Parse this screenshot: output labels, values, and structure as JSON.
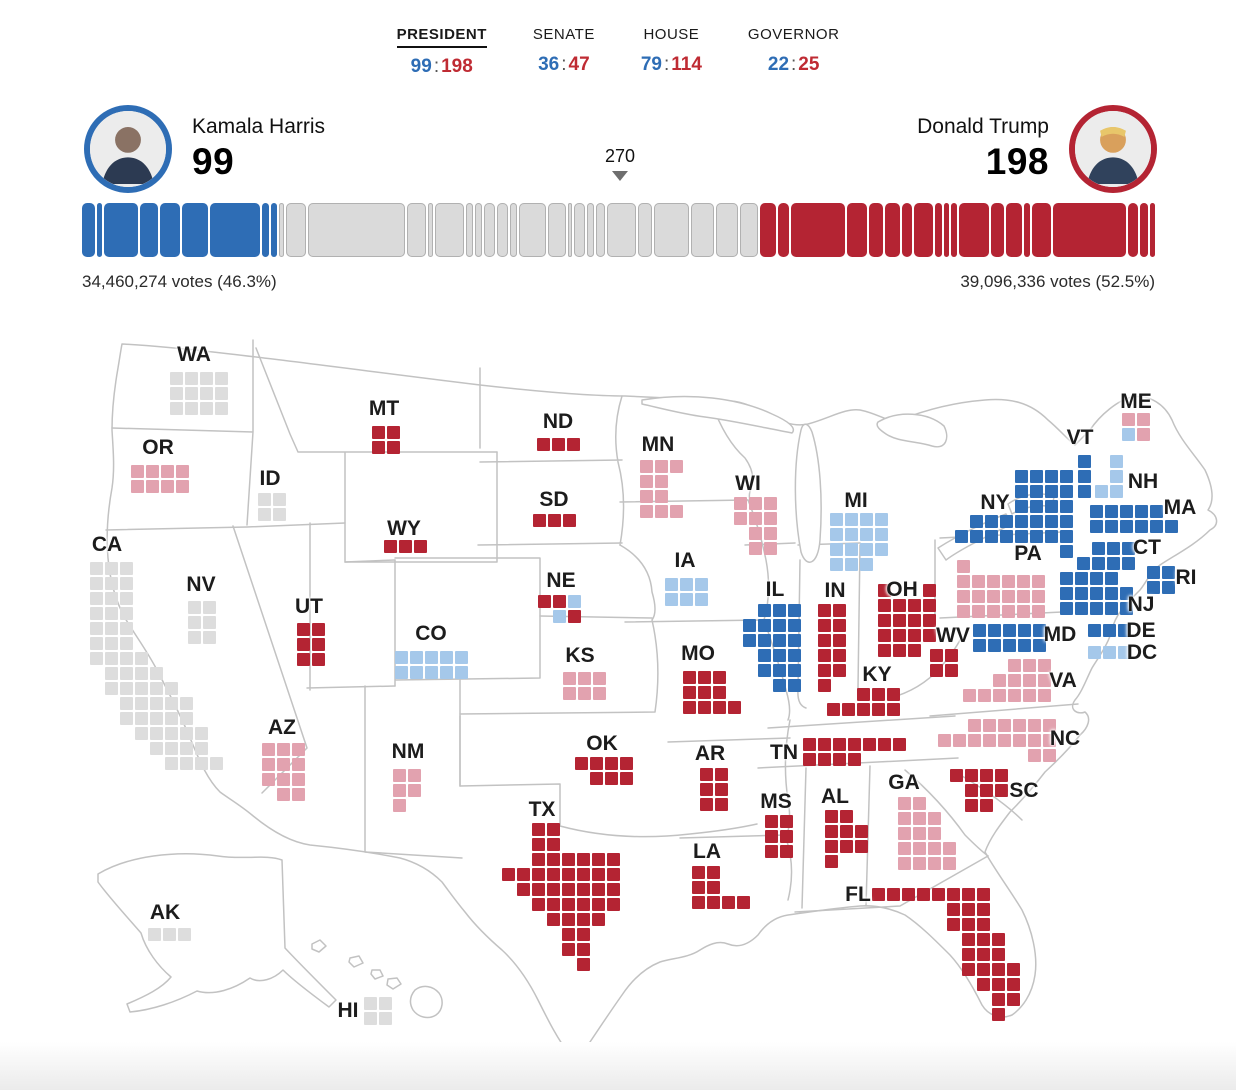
{
  "nav": {
    "tabs": [
      {
        "label": "PRESIDENT",
        "dem": "99",
        "rep": "198",
        "active": true
      },
      {
        "label": "SENATE",
        "dem": "36",
        "rep": "47",
        "active": false
      },
      {
        "label": "HOUSE",
        "dem": "79",
        "rep": "114",
        "active": false
      },
      {
        "label": "GOVERNOR",
        "dem": "22",
        "rep": "25",
        "active": false
      }
    ]
  },
  "candidates": {
    "dem": {
      "name": "Kamala Harris",
      "electoral_votes": "99",
      "popular_votes": "34,460,274 votes (46.3%)"
    },
    "rep": {
      "name": "Donald Trump",
      "electoral_votes": "198",
      "popular_votes": "39,096,336 votes (52.5%)"
    }
  },
  "threshold": {
    "label": "270"
  },
  "totals": {
    "dem_ev": 99,
    "rep_ev": 198,
    "uncalled_ev": 241,
    "total_ev": 538,
    "win_threshold": 270
  },
  "colors": {
    "dem": "#2e6db5",
    "dem_lean": "#a5c8ea",
    "rep": "#b42433",
    "rep_lean": "#e2a2af",
    "uncalled": "#dddddd",
    "bar_uncalled": "#dadada",
    "outline": "#c2c2c2"
  },
  "bar": {
    "dem_segments": [
      {
        "abbr": "CT",
        "ev": 7
      },
      {
        "abbr": "DE",
        "ev": 3
      },
      {
        "abbr": "IL",
        "ev": 19
      },
      {
        "abbr": "MD",
        "ev": 10
      },
      {
        "abbr": "MA",
        "ev": 11
      },
      {
        "abbr": "NJ",
        "ev": 14
      },
      {
        "abbr": "NY",
        "ev": 28
      },
      {
        "abbr": "RI",
        "ev": 4
      },
      {
        "abbr": "VT",
        "ev": 3
      }
    ],
    "uncalled_segments": [
      {
        "abbr": "AK",
        "ev": 3
      },
      {
        "abbr": "AZ",
        "ev": 11
      },
      {
        "abbr": "CA",
        "ev": 54
      },
      {
        "abbr": "CO",
        "ev": 10
      },
      {
        "abbr": "DC",
        "ev": 3
      },
      {
        "abbr": "GA",
        "ev": 16
      },
      {
        "abbr": "HI",
        "ev": 4
      },
      {
        "abbr": "ID",
        "ev": 4
      },
      {
        "abbr": "IA",
        "ev": 6
      },
      {
        "abbr": "KS",
        "ev": 6
      },
      {
        "abbr": "ME",
        "ev": 4
      },
      {
        "abbr": "MI",
        "ev": 15
      },
      {
        "abbr": "MN",
        "ev": 10
      },
      {
        "abbr": "NE",
        "ev": 2
      },
      {
        "abbr": "NV",
        "ev": 6
      },
      {
        "abbr": "NH",
        "ev": 4
      },
      {
        "abbr": "NM",
        "ev": 5
      },
      {
        "abbr": "NC",
        "ev": 16
      },
      {
        "abbr": "OR",
        "ev": 8
      },
      {
        "abbr": "PA",
        "ev": 19
      },
      {
        "abbr": "VA",
        "ev": 13
      },
      {
        "abbr": "WA",
        "ev": 12
      },
      {
        "abbr": "WI",
        "ev": 10
      }
    ],
    "rep_segments": [
      {
        "abbr": "AL",
        "ev": 9
      },
      {
        "abbr": "AR",
        "ev": 6
      },
      {
        "abbr": "FL",
        "ev": 30
      },
      {
        "abbr": "IN",
        "ev": 11
      },
      {
        "abbr": "KY",
        "ev": 8
      },
      {
        "abbr": "LA",
        "ev": 8
      },
      {
        "abbr": "MS",
        "ev": 6
      },
      {
        "abbr": "MO",
        "ev": 10
      },
      {
        "abbr": "MT",
        "ev": 4
      },
      {
        "abbr": "NE",
        "ev": 3
      },
      {
        "abbr": "ND",
        "ev": 3
      },
      {
        "abbr": "OH",
        "ev": 17
      },
      {
        "abbr": "OK",
        "ev": 7
      },
      {
        "abbr": "SC",
        "ev": 9
      },
      {
        "abbr": "SD",
        "ev": 3
      },
      {
        "abbr": "TN",
        "ev": 11
      },
      {
        "abbr": "TX",
        "ev": 40
      },
      {
        "abbr": "UT",
        "ev": 6
      },
      {
        "abbr": "WV",
        "ev": 4
      },
      {
        "abbr": "WY",
        "ev": 3
      }
    ]
  },
  "map": {
    "legend_note": "tile chars: D=dem-won d=dem-leading R=rep-won r=rep-leading g=no-results",
    "states": [
      {
        "abbr": "WA",
        "ev": 12,
        "status": "uncalled",
        "label": [
          194,
          355
        ],
        "tiles": [
          170,
          372
        ],
        "pattern": [
          "gggg",
          "gggg",
          "gggg"
        ]
      },
      {
        "abbr": "OR",
        "ev": 8,
        "status": "rep-lean",
        "label": [
          158,
          448
        ],
        "tiles": [
          131,
          465
        ],
        "pattern": [
          "rrrr",
          "rrrr"
        ]
      },
      {
        "abbr": "CA",
        "ev": 54,
        "status": "uncalled",
        "label": [
          107,
          545
        ],
        "tiles": [
          90,
          562
        ],
        "pattern": [
          "ggg......",
          "ggg......",
          "ggg......",
          "ggg......",
          "ggg......",
          "ggg......",
          "gggg.....",
          ".gggg....",
          ".ggggg...",
          "..ggggg..",
          "..ggggg..",
          "...ggggg.",
          "....gggg.",
          ".....gggg"
        ]
      },
      {
        "abbr": "NV",
        "ev": 6,
        "status": "uncalled",
        "label": [
          201,
          585
        ],
        "tiles": [
          188,
          601
        ],
        "pattern": [
          "gg",
          "gg",
          "gg"
        ]
      },
      {
        "abbr": "ID",
        "ev": 4,
        "status": "uncalled",
        "label": [
          270,
          479
        ],
        "tiles": [
          258,
          493
        ],
        "pattern": [
          "gg",
          "gg"
        ]
      },
      {
        "abbr": "MT",
        "ev": 4,
        "status": "rep",
        "label": [
          384,
          409
        ],
        "tiles": [
          372,
          426
        ],
        "pattern": [
          "RR",
          "RR"
        ]
      },
      {
        "abbr": "WY",
        "ev": 3,
        "status": "rep",
        "label": [
          404,
          529
        ],
        "tiles": [
          384,
          540
        ],
        "pattern": [
          "RRR"
        ]
      },
      {
        "abbr": "UT",
        "ev": 6,
        "status": "rep",
        "label": [
          309,
          607
        ],
        "tiles": [
          297,
          623
        ],
        "pattern": [
          "RR",
          "RR",
          "RR"
        ]
      },
      {
        "abbr": "CO",
        "ev": 10,
        "status": "dem-lean",
        "label": [
          431,
          634
        ],
        "tiles": [
          395,
          651
        ],
        "pattern": [
          "ddddd",
          "ddddd"
        ]
      },
      {
        "abbr": "AZ",
        "ev": 11,
        "status": "rep-lean",
        "label": [
          282,
          728
        ],
        "tiles": [
          262,
          743
        ],
        "pattern": [
          "rrr",
          "rrr",
          "rrr",
          ".rr"
        ]
      },
      {
        "abbr": "NM",
        "ev": 5,
        "status": "rep-lean",
        "label": [
          408,
          752
        ],
        "tiles": [
          393,
          769
        ],
        "pattern": [
          "rr",
          "rr",
          "r."
        ]
      },
      {
        "abbr": "AK",
        "ev": 3,
        "status": "uncalled",
        "label": [
          165,
          913
        ],
        "tiles": [
          148,
          928
        ],
        "pattern": [
          "ggg"
        ]
      },
      {
        "abbr": "HI",
        "ev": 4,
        "status": "uncalled",
        "label": [
          348,
          1011
        ],
        "tiles": [
          364,
          997
        ],
        "pattern": [
          "gg",
          "gg"
        ]
      },
      {
        "abbr": "ND",
        "ev": 3,
        "status": "rep",
        "label": [
          558,
          422
        ],
        "tiles": [
          537,
          438
        ],
        "pattern": [
          "RRR"
        ]
      },
      {
        "abbr": "SD",
        "ev": 3,
        "status": "rep",
        "label": [
          554,
          500
        ],
        "tiles": [
          533,
          514
        ],
        "pattern": [
          "RRR"
        ]
      },
      {
        "abbr": "NE",
        "ev": 5,
        "status": "split",
        "label": [
          561,
          581
        ],
        "tiles": [
          538,
          595
        ],
        "pattern": [
          "RRd",
          ".dR"
        ]
      },
      {
        "abbr": "KS",
        "ev": 6,
        "status": "rep-lean",
        "label": [
          580,
          656
        ],
        "tiles": [
          563,
          672
        ],
        "pattern": [
          "rrr",
          "rrr"
        ]
      },
      {
        "abbr": "OK",
        "ev": 7,
        "status": "rep",
        "label": [
          602,
          744
        ],
        "tiles": [
          575,
          757
        ],
        "pattern": [
          "RRRR",
          ".RRR"
        ]
      },
      {
        "abbr": "TX",
        "ev": 40,
        "status": "rep",
        "label": [
          542,
          810
        ],
        "tiles": [
          502,
          823
        ],
        "pattern": [
          "..RR....",
          "..RR....",
          "..RRRRRR",
          "RRRRRRRR",
          ".RRRRRRR",
          "..RRRRRR",
          "...RRRR.",
          "....RR..",
          "....RR..",
          ".....R.."
        ]
      },
      {
        "abbr": "MN",
        "ev": 10,
        "status": "rep-lean",
        "label": [
          658,
          445
        ],
        "tiles": [
          640,
          460
        ],
        "pattern": [
          "rrr",
          "rr.",
          "rr.",
          "rrr"
        ]
      },
      {
        "abbr": "IA",
        "ev": 6,
        "status": "dem-lean",
        "label": [
          685,
          561
        ],
        "tiles": [
          665,
          578
        ],
        "pattern": [
          "ddd",
          "ddd"
        ]
      },
      {
        "abbr": "MO",
        "ev": 10,
        "status": "rep",
        "label": [
          698,
          654
        ],
        "tiles": [
          683,
          671
        ],
        "pattern": [
          "RRR.",
          "RRR.",
          "RRRR"
        ]
      },
      {
        "abbr": "AR",
        "ev": 6,
        "status": "rep",
        "label": [
          710,
          754
        ],
        "tiles": [
          700,
          768
        ],
        "pattern": [
          "RR",
          "RR",
          "RR"
        ]
      },
      {
        "abbr": "LA",
        "ev": 8,
        "status": "rep",
        "label": [
          707,
          852
        ],
        "tiles": [
          692,
          866
        ],
        "pattern": [
          "RR..",
          "RR..",
          "RRRR"
        ]
      },
      {
        "abbr": "WI",
        "ev": 10,
        "status": "rep-lean",
        "label": [
          748,
          484
        ],
        "tiles": [
          734,
          497
        ],
        "pattern": [
          "rrr",
          "rrr",
          ".rr",
          ".rr"
        ]
      },
      {
        "abbr": "IL",
        "ev": 19,
        "status": "dem",
        "label": [
          775,
          590
        ],
        "tiles": [
          743,
          604
        ],
        "pattern": [
          ".DDD",
          "DDDD",
          "DDDD",
          ".DDD",
          ".DDD",
          "..DD"
        ]
      },
      {
        "abbr": "MI",
        "ev": 15,
        "status": "dem-lean",
        "label": [
          856,
          501
        ],
        "tiles": [
          830,
          513
        ],
        "pattern": [
          "dddd",
          "dddd",
          "dddd",
          "ddd."
        ]
      },
      {
        "abbr": "IN",
        "ev": 11,
        "status": "rep",
        "label": [
          835,
          591
        ],
        "tiles": [
          818,
          604
        ],
        "pattern": [
          "RR",
          "RR",
          "RR",
          "RR",
          "RR",
          "R."
        ]
      },
      {
        "abbr": "OH",
        "ev": 17,
        "status": "rep",
        "label": [
          902,
          590
        ],
        "tiles": [
          878,
          584
        ],
        "pattern": [
          "R..R",
          "RRRR",
          "RRRR",
          "RRRR",
          "RRR."
        ]
      },
      {
        "abbr": "KY",
        "ev": 8,
        "status": "rep",
        "label": [
          877,
          675
        ],
        "tiles": [
          827,
          688
        ],
        "pattern": [
          "..RRR",
          "RRRRR"
        ]
      },
      {
        "abbr": "TN",
        "ev": 11,
        "status": "rep",
        "label": [
          784,
          753
        ],
        "tiles": [
          803,
          738
        ],
        "pattern": [
          "RRRRRRR",
          "RRRR..."
        ]
      },
      {
        "abbr": "WV",
        "ev": 4,
        "status": "rep",
        "label": [
          953,
          636
        ],
        "tiles": [
          930,
          649
        ],
        "pattern": [
          "RR",
          "RR"
        ]
      },
      {
        "abbr": "PA",
        "ev": 19,
        "status": "rep-lean",
        "label": [
          1028,
          554
        ],
        "tiles": [
          957,
          560
        ],
        "pattern": [
          "r.....",
          "rrrrrr",
          "rrrrrr",
          "rrrrrr"
        ]
      },
      {
        "abbr": "NY",
        "ev": 28,
        "status": "dem",
        "label": [
          995,
          503
        ],
        "tiles": [
          955,
          470
        ],
        "pattern": [
          "....DDDD",
          "....DDDD",
          "....DDDD",
          ".DDDDDDD",
          "DDDDDDDD",
          ".......D"
        ]
      },
      {
        "abbr": "VT",
        "ev": 3,
        "status": "dem",
        "label": [
          1080,
          438
        ],
        "tiles": [
          1078,
          455
        ],
        "pattern": [
          "D",
          "D",
          "D"
        ]
      },
      {
        "abbr": "NH",
        "ev": 4,
        "status": "dem-lean",
        "label": [
          1143,
          482
        ],
        "tiles": [
          1095,
          455
        ],
        "pattern": [
          ".d",
          ".d",
          "dd"
        ]
      },
      {
        "abbr": "ME",
        "ev": 4,
        "status": "split",
        "label": [
          1136,
          402
        ],
        "tiles": [
          1122,
          413
        ],
        "pattern": [
          "rr",
          "dr"
        ]
      },
      {
        "abbr": "MA",
        "ev": 11,
        "status": "dem",
        "label": [
          1180,
          508
        ],
        "tiles": [
          1090,
          505
        ],
        "pattern": [
          "DDDDD.",
          "DDDDDD"
        ]
      },
      {
        "abbr": "CT",
        "ev": 7,
        "status": "dem",
        "label": [
          1147,
          548
        ],
        "tiles": [
          1077,
          542
        ],
        "pattern": [
          ".DDD",
          "DDDD"
        ]
      },
      {
        "abbr": "RI",
        "ev": 4,
        "status": "dem",
        "label": [
          1186,
          578
        ],
        "tiles": [
          1147,
          566
        ],
        "pattern": [
          "DD",
          "DD"
        ]
      },
      {
        "abbr": "NJ",
        "ev": 14,
        "status": "dem",
        "label": [
          1141,
          605
        ],
        "tiles": [
          1060,
          572
        ],
        "pattern": [
          "DDDD.",
          "DDDDD",
          "DDDDD"
        ]
      },
      {
        "abbr": "MD",
        "ev": 10,
        "status": "dem",
        "label": [
          1060,
          635
        ],
        "tiles": [
          973,
          624
        ],
        "pattern": [
          "DDDDD",
          "DDDDD"
        ]
      },
      {
        "abbr": "DE",
        "ev": 3,
        "status": "dem",
        "label": [
          1141,
          631
        ],
        "tiles": [
          1088,
          624
        ],
        "pattern": [
          "DDD"
        ]
      },
      {
        "abbr": "DC",
        "ev": 3,
        "status": "dem-lean",
        "label": [
          1142,
          653
        ],
        "tiles": [
          1088,
          646
        ],
        "pattern": [
          "ddd"
        ]
      },
      {
        "abbr": "VA",
        "ev": 13,
        "status": "rep-lean",
        "label": [
          1063,
          681
        ],
        "tiles": [
          963,
          659
        ],
        "pattern": [
          "...rrr",
          "..rrrr",
          "rrrrrr"
        ]
      },
      {
        "abbr": "NC",
        "ev": 16,
        "status": "rep-lean",
        "label": [
          1065,
          739
        ],
        "tiles": [
          938,
          719
        ],
        "pattern": [
          "..rrrrrr",
          "rrrrrrrr",
          "......rr"
        ]
      },
      {
        "abbr": "SC",
        "ev": 9,
        "status": "rep",
        "label": [
          1024,
          791
        ],
        "tiles": [
          950,
          769
        ],
        "pattern": [
          "RRRR",
          ".RRR",
          ".RR."
        ]
      },
      {
        "abbr": "GA",
        "ev": 16,
        "status": "rep-lean",
        "label": [
          904,
          783
        ],
        "tiles": [
          898,
          797
        ],
        "pattern": [
          "rr..",
          "rrr.",
          "rrr.",
          "rrrr",
          "rrrr"
        ]
      },
      {
        "abbr": "AL",
        "ev": 9,
        "status": "rep",
        "label": [
          835,
          797
        ],
        "tiles": [
          825,
          810
        ],
        "pattern": [
          "RR.",
          "RRR",
          "RRR",
          "R.."
        ]
      },
      {
        "abbr": "MS",
        "ev": 6,
        "status": "rep",
        "label": [
          776,
          802
        ],
        "tiles": [
          765,
          815
        ],
        "pattern": [
          "RR",
          "RR",
          "RR"
        ]
      },
      {
        "abbr": "FL",
        "ev": 30,
        "status": "rep",
        "label": [
          858,
          895
        ],
        "tiles": [
          872,
          888
        ],
        "pattern": [
          "RRRRRRRR..",
          ".....RRR..",
          ".....RRR..",
          "......RRR.",
          "......RRR.",
          "......RRRR",
          ".......RRR",
          "........RR",
          "........R."
        ]
      }
    ]
  }
}
